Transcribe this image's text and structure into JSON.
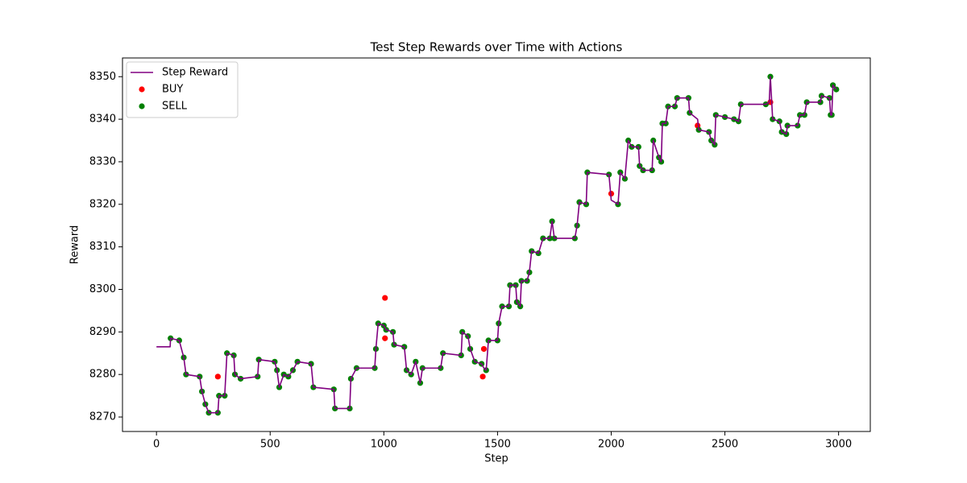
{
  "chart_data": {
    "type": "line",
    "title": "Test Step Rewards over Time with Actions",
    "xlabel": "Step",
    "ylabel": "Reward",
    "xlim": [
      -149.5,
      3139.5
    ],
    "ylim": [
      8266.6,
      8354.4
    ],
    "xticks": [
      0,
      500,
      1000,
      1500,
      2000,
      2500,
      3000
    ],
    "yticks": [
      8270,
      8280,
      8290,
      8300,
      8310,
      8320,
      8330,
      8340,
      8350
    ],
    "grid": false,
    "legend": "upper left",
    "series": [
      {
        "name": "Step Reward",
        "type": "line",
        "color": "#800080",
        "x": [
          0,
          60,
          62,
          100,
          120,
          130,
          190,
          200,
          215,
          230,
          270,
          275,
          300,
          310,
          340,
          345,
          370,
          445,
          450,
          520,
          530,
          540,
          560,
          580,
          600,
          620,
          680,
          690,
          780,
          785,
          850,
          855,
          880,
          960,
          965,
          975,
          1000,
          1010,
          1040,
          1045,
          1090,
          1100,
          1120,
          1140,
          1160,
          1170,
          1250,
          1260,
          1340,
          1345,
          1370,
          1380,
          1400,
          1430,
          1440,
          1450,
          1460,
          1500,
          1505,
          1520,
          1550,
          1555,
          1580,
          1585,
          1600,
          1605,
          1630,
          1640,
          1650,
          1680,
          1700,
          1730,
          1740,
          1750,
          1840,
          1850,
          1860,
          1890,
          1895,
          1990,
          2000,
          2030,
          2040,
          2060,
          2075,
          2090,
          2120,
          2125,
          2140,
          2180,
          2185,
          2210,
          2220,
          2225,
          2240,
          2250,
          2280,
          2290,
          2340,
          2345,
          2380,
          2385,
          2430,
          2440,
          2455,
          2460,
          2500,
          2540,
          2560,
          2570,
          2680,
          2695,
          2700,
          2710,
          2740,
          2750,
          2770,
          2775,
          2820,
          2830,
          2850,
          2860,
          2920,
          2925,
          2960,
          2965,
          2970,
          2975,
          2990
        ],
        "values": [
          8286.5,
          8286.5,
          8288.5,
          8288,
          8284,
          8280,
          8279.5,
          8276,
          8273,
          8271,
          8271,
          8275,
          8275,
          8285,
          8284.5,
          8280,
          8279,
          8279.5,
          8283.5,
          8283,
          8281,
          8277,
          8280,
          8279.5,
          8281,
          8283,
          8282.5,
          8277,
          8276.5,
          8272,
          8272,
          8279,
          8281.5,
          8281.5,
          8286,
          8292,
          8291.5,
          8290.5,
          8290,
          8287,
          8286.5,
          8281,
          8280,
          8283,
          8278,
          8281.5,
          8281.5,
          8285,
          8284.5,
          8290,
          8289,
          8286,
          8283,
          8282.5,
          8281.5,
          8281,
          8288,
          8288,
          8292,
          8296,
          8296,
          8301,
          8301,
          8297,
          8296,
          8302,
          8302,
          8304,
          8309,
          8308.5,
          8312,
          8312,
          8316,
          8312,
          8312,
          8315,
          8320.5,
          8320,
          8327.5,
          8327,
          8321,
          8320,
          8327.5,
          8326,
          8335,
          8333.5,
          8333.5,
          8329,
          8328,
          8328,
          8335,
          8331,
          8330,
          8339,
          8339,
          8343,
          8343,
          8345,
          8345,
          8341.5,
          8340,
          8337.5,
          8337,
          8335,
          8334,
          8341,
          8340.5,
          8340,
          8339.5,
          8343.5,
          8343.5,
          8344,
          8350,
          8340,
          8339.5,
          8337,
          8336.5,
          8338.5,
          8338.5,
          8341,
          8341,
          8344,
          8344,
          8345.5,
          8345,
          8341,
          8341,
          8348,
          8347
        ]
      },
      {
        "name": "BUY",
        "type": "scatter",
        "color": "#ff0000",
        "x": [
          270,
          1005,
          1005,
          1435,
          1440,
          2000,
          2380,
          2700
        ],
        "values": [
          8279.5,
          8298,
          8288.5,
          8279.5,
          8286,
          8322.5,
          8338.5,
          8344
        ]
      },
      {
        "name": "SELL",
        "type": "scatter",
        "color": "#008000",
        "x": [
          62,
          100,
          120,
          130,
          190,
          200,
          215,
          230,
          270,
          275,
          300,
          310,
          340,
          345,
          370,
          445,
          450,
          520,
          530,
          540,
          560,
          580,
          600,
          620,
          680,
          690,
          780,
          785,
          850,
          855,
          880,
          960,
          965,
          975,
          1000,
          1010,
          1040,
          1045,
          1090,
          1100,
          1120,
          1140,
          1160,
          1170,
          1250,
          1260,
          1340,
          1345,
          1370,
          1380,
          1400,
          1430,
          1450,
          1460,
          1500,
          1505,
          1520,
          1550,
          1555,
          1580,
          1585,
          1600,
          1605,
          1630,
          1640,
          1650,
          1680,
          1700,
          1730,
          1740,
          1750,
          1840,
          1850,
          1860,
          1890,
          1895,
          1990,
          2030,
          2040,
          2060,
          2075,
          2090,
          2120,
          2125,
          2140,
          2180,
          2185,
          2210,
          2220,
          2225,
          2240,
          2250,
          2280,
          2290,
          2340,
          2345,
          2385,
          2430,
          2440,
          2455,
          2460,
          2500,
          2540,
          2560,
          2570,
          2680,
          2700,
          2710,
          2740,
          2750,
          2770,
          2775,
          2820,
          2830,
          2850,
          2860,
          2920,
          2925,
          2960,
          2965,
          2970,
          2975,
          2990
        ],
        "values": [
          8288.5,
          8288,
          8284,
          8280,
          8279.5,
          8276,
          8273,
          8271,
          8271,
          8275,
          8275,
          8285,
          8284.5,
          8280,
          8279,
          8279.5,
          8283.5,
          8283,
          8281,
          8277,
          8280,
          8279.5,
          8281,
          8283,
          8282.5,
          8277,
          8276.5,
          8272,
          8272,
          8279,
          8281.5,
          8281.5,
          8286,
          8292,
          8291.5,
          8290.5,
          8290,
          8287,
          8286.5,
          8281,
          8280,
          8283,
          8278,
          8281.5,
          8281.5,
          8285,
          8284.5,
          8290,
          8289,
          8286,
          8283,
          8282.5,
          8281,
          8288,
          8288,
          8292,
          8296,
          8296,
          8301,
          8301,
          8297,
          8296,
          8302,
          8302,
          8304,
          8309,
          8308.5,
          8312,
          8312,
          8316,
          8312,
          8312,
          8315,
          8320.5,
          8320,
          8327.5,
          8327,
          8320,
          8327.5,
          8326,
          8335,
          8333.5,
          8333.5,
          8329,
          8328,
          8328,
          8335,
          8331,
          8330,
          8339,
          8339,
          8343,
          8343,
          8345,
          8345,
          8341.5,
          8337.5,
          8337,
          8335,
          8334,
          8341,
          8340.5,
          8340,
          8339.5,
          8343.5,
          8343.5,
          8350,
          8340,
          8339.5,
          8337,
          8336.5,
          8338.5,
          8338.5,
          8341,
          8341,
          8344,
          8344,
          8345.5,
          8345,
          8341,
          8341,
          8348,
          8347
        ]
      }
    ]
  }
}
